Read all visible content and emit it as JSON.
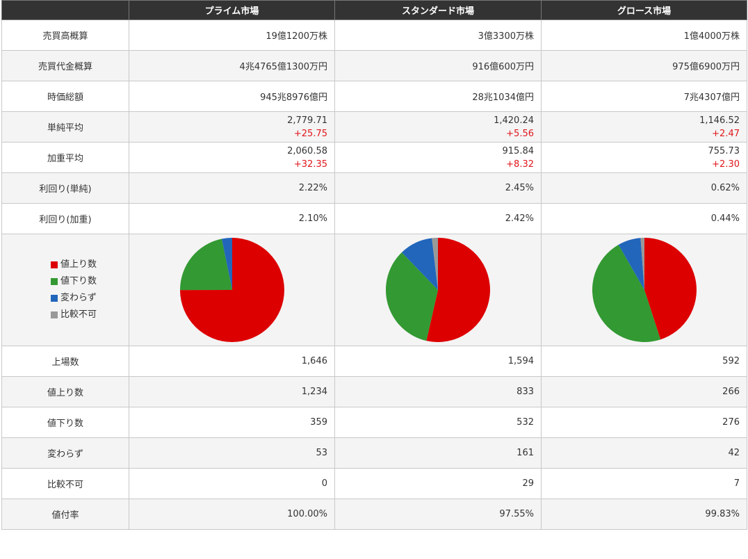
{
  "headers": [
    "",
    "プライム市場",
    "スタンダード市場",
    "グロース市場"
  ],
  "rows_top": [
    {
      "label": "売買高概算",
      "values": [
        "19億1200万株",
        "3億3300万株",
        "1億4000万株"
      ]
    },
    {
      "label": "売買代金概算",
      "values": [
        "4兆4765億1300万円",
        "916億600万円",
        "975億6900万円"
      ]
    },
    {
      "label": "時価総額",
      "values": [
        "945兆8976億円",
        "28兆1034億円",
        "7兆4307億円"
      ]
    }
  ],
  "rows_avg": [
    {
      "label": "単純平均",
      "values": [
        "2,779.71",
        "1,420.24",
        "1,146.52"
      ],
      "changes": [
        "+25.75",
        "+5.56",
        "+2.47"
      ]
    },
    {
      "label": "加重平均",
      "values": [
        "2,060.58",
        "915.84",
        "755.73"
      ],
      "changes": [
        "+32.35",
        "+8.32",
        "+2.30"
      ]
    }
  ],
  "rows_yield": [
    {
      "label": "利回り(単純)",
      "values": [
        "2.22%",
        "2.45%",
        "0.62%"
      ]
    },
    {
      "label": "利回り(加重)",
      "values": [
        "2.10%",
        "2.42%",
        "0.44%"
      ]
    }
  ],
  "legend": [
    {
      "label": "値上り数",
      "color": "#dd0000"
    },
    {
      "label": "値下り数",
      "color": "#339933"
    },
    {
      "label": "変わらず",
      "color": "#2266bb"
    },
    {
      "label": "比較不可",
      "color": "#999999"
    }
  ],
  "rows_bottom": [
    {
      "label": "上場数",
      "values": [
        "1,646",
        "1,594",
        "592"
      ]
    },
    {
      "label": "値上り数",
      "values": [
        "1,234",
        "833",
        "266"
      ]
    },
    {
      "label": "値下り数",
      "values": [
        "359",
        "532",
        "276"
      ]
    },
    {
      "label": "変わらず",
      "values": [
        "53",
        "161",
        "42"
      ]
    },
    {
      "label": "比較不可",
      "values": [
        "0",
        "29",
        "7"
      ]
    },
    {
      "label": "値付率",
      "values": [
        "100.00%",
        "97.55%",
        "99.83%"
      ]
    }
  ],
  "chart_data": [
    {
      "type": "pie",
      "name": "プライム市場",
      "categories": [
        "値上り数",
        "値下り数",
        "変わらず",
        "比較不可"
      ],
      "values": [
        1234,
        359,
        53,
        0
      ],
      "colors": [
        "#dd0000",
        "#339933",
        "#2266bb",
        "#999999"
      ]
    },
    {
      "type": "pie",
      "name": "スタンダード市場",
      "categories": [
        "値上り数",
        "値下り数",
        "変わらず",
        "比較不可"
      ],
      "values": [
        833,
        532,
        161,
        29
      ],
      "colors": [
        "#dd0000",
        "#339933",
        "#2266bb",
        "#999999"
      ]
    },
    {
      "type": "pie",
      "name": "グロース市場",
      "categories": [
        "値上り数",
        "値下り数",
        "変わらず",
        "比較不可"
      ],
      "values": [
        266,
        276,
        42,
        7
      ],
      "colors": [
        "#dd0000",
        "#339933",
        "#2266bb",
        "#999999"
      ]
    }
  ]
}
